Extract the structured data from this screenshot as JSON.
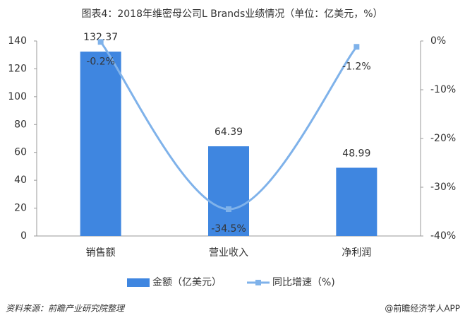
{
  "chart_data": {
    "type": "bar-line",
    "title": "图表4：2018年维密母公司L Brands业绩情况（单位：亿美元，%）",
    "categories": [
      "销售额",
      "营业收入",
      "净利润"
    ],
    "series": [
      {
        "name": "金额（亿美元）",
        "type": "bar",
        "color": "#3f86e0",
        "values": [
          132.37,
          64.39,
          48.99
        ]
      },
      {
        "name": "同比增速（%)",
        "type": "line",
        "axis": "y2",
        "color": "#7fb2ea",
        "values": [
          -0.2,
          -34.5,
          -1.2
        ],
        "value_labels": [
          "-0.2%",
          "-34.5%",
          "-1.2%"
        ]
      }
    ],
    "ylim": [
      0,
      140
    ],
    "yticks": [
      0,
      20,
      40,
      60,
      80,
      100,
      120,
      140
    ],
    "y2lim": [
      -40,
      0
    ],
    "y2ticks": [
      {
        "value": 0,
        "label": "0%"
      },
      {
        "value": -10,
        "label": "-10%"
      },
      {
        "value": -20,
        "label": "-20%"
      },
      {
        "value": -30,
        "label": "-30%"
      },
      {
        "value": -40,
        "label": "-40%"
      }
    ],
    "legend": "bottom",
    "source": "资料来源：前瞻产业研究院整理",
    "brand": "@前瞻经济学人APP"
  }
}
